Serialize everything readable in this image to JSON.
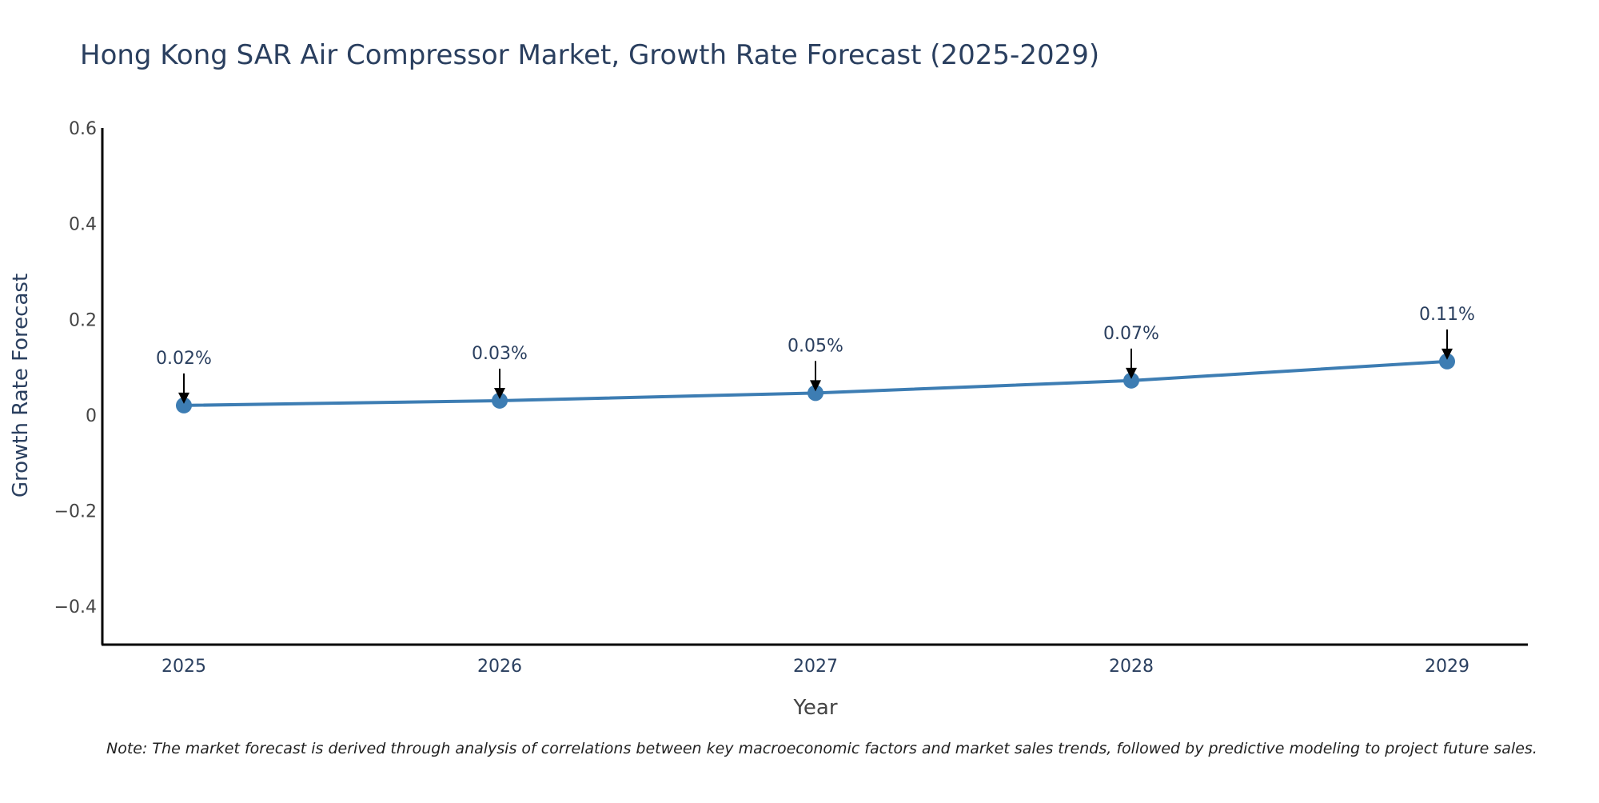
{
  "chart_data": {
    "type": "line",
    "title": "Hong Kong SAR Air Compressor Market, Growth Rate Forecast (2025-2029)",
    "xlabel": "Year",
    "ylabel": "Growth Rate Forecast",
    "categories": [
      "2025",
      "2026",
      "2027",
      "2028",
      "2029"
    ],
    "series": [
      {
        "name": "Growth Rate Forecast",
        "values": [
          0.02,
          0.03,
          0.046,
          0.072,
          0.112
        ],
        "color": "#3d7db3"
      }
    ],
    "data_labels": [
      "0.02%",
      "0.03%",
      "0.05%",
      "0.07%",
      "0.11%"
    ],
    "ylim": [
      -0.48,
      0.6
    ],
    "yticks": [
      -0.4,
      -0.2,
      0,
      0.2,
      0.4,
      0.6
    ],
    "ytick_labels": [
      "−0.4",
      "−0.2",
      "0",
      "0.2",
      "0.4",
      "0.6"
    ],
    "grid": false,
    "note": "Note: The market forecast is derived through analysis of correlations between key macroeconomic factors and market sales trends, followed by predictive modeling to project future sales.",
    "colors": {
      "line": "#3d7db3",
      "text": "#2a3f5f",
      "axis": "#000000",
      "tick_text": "#444444"
    }
  }
}
